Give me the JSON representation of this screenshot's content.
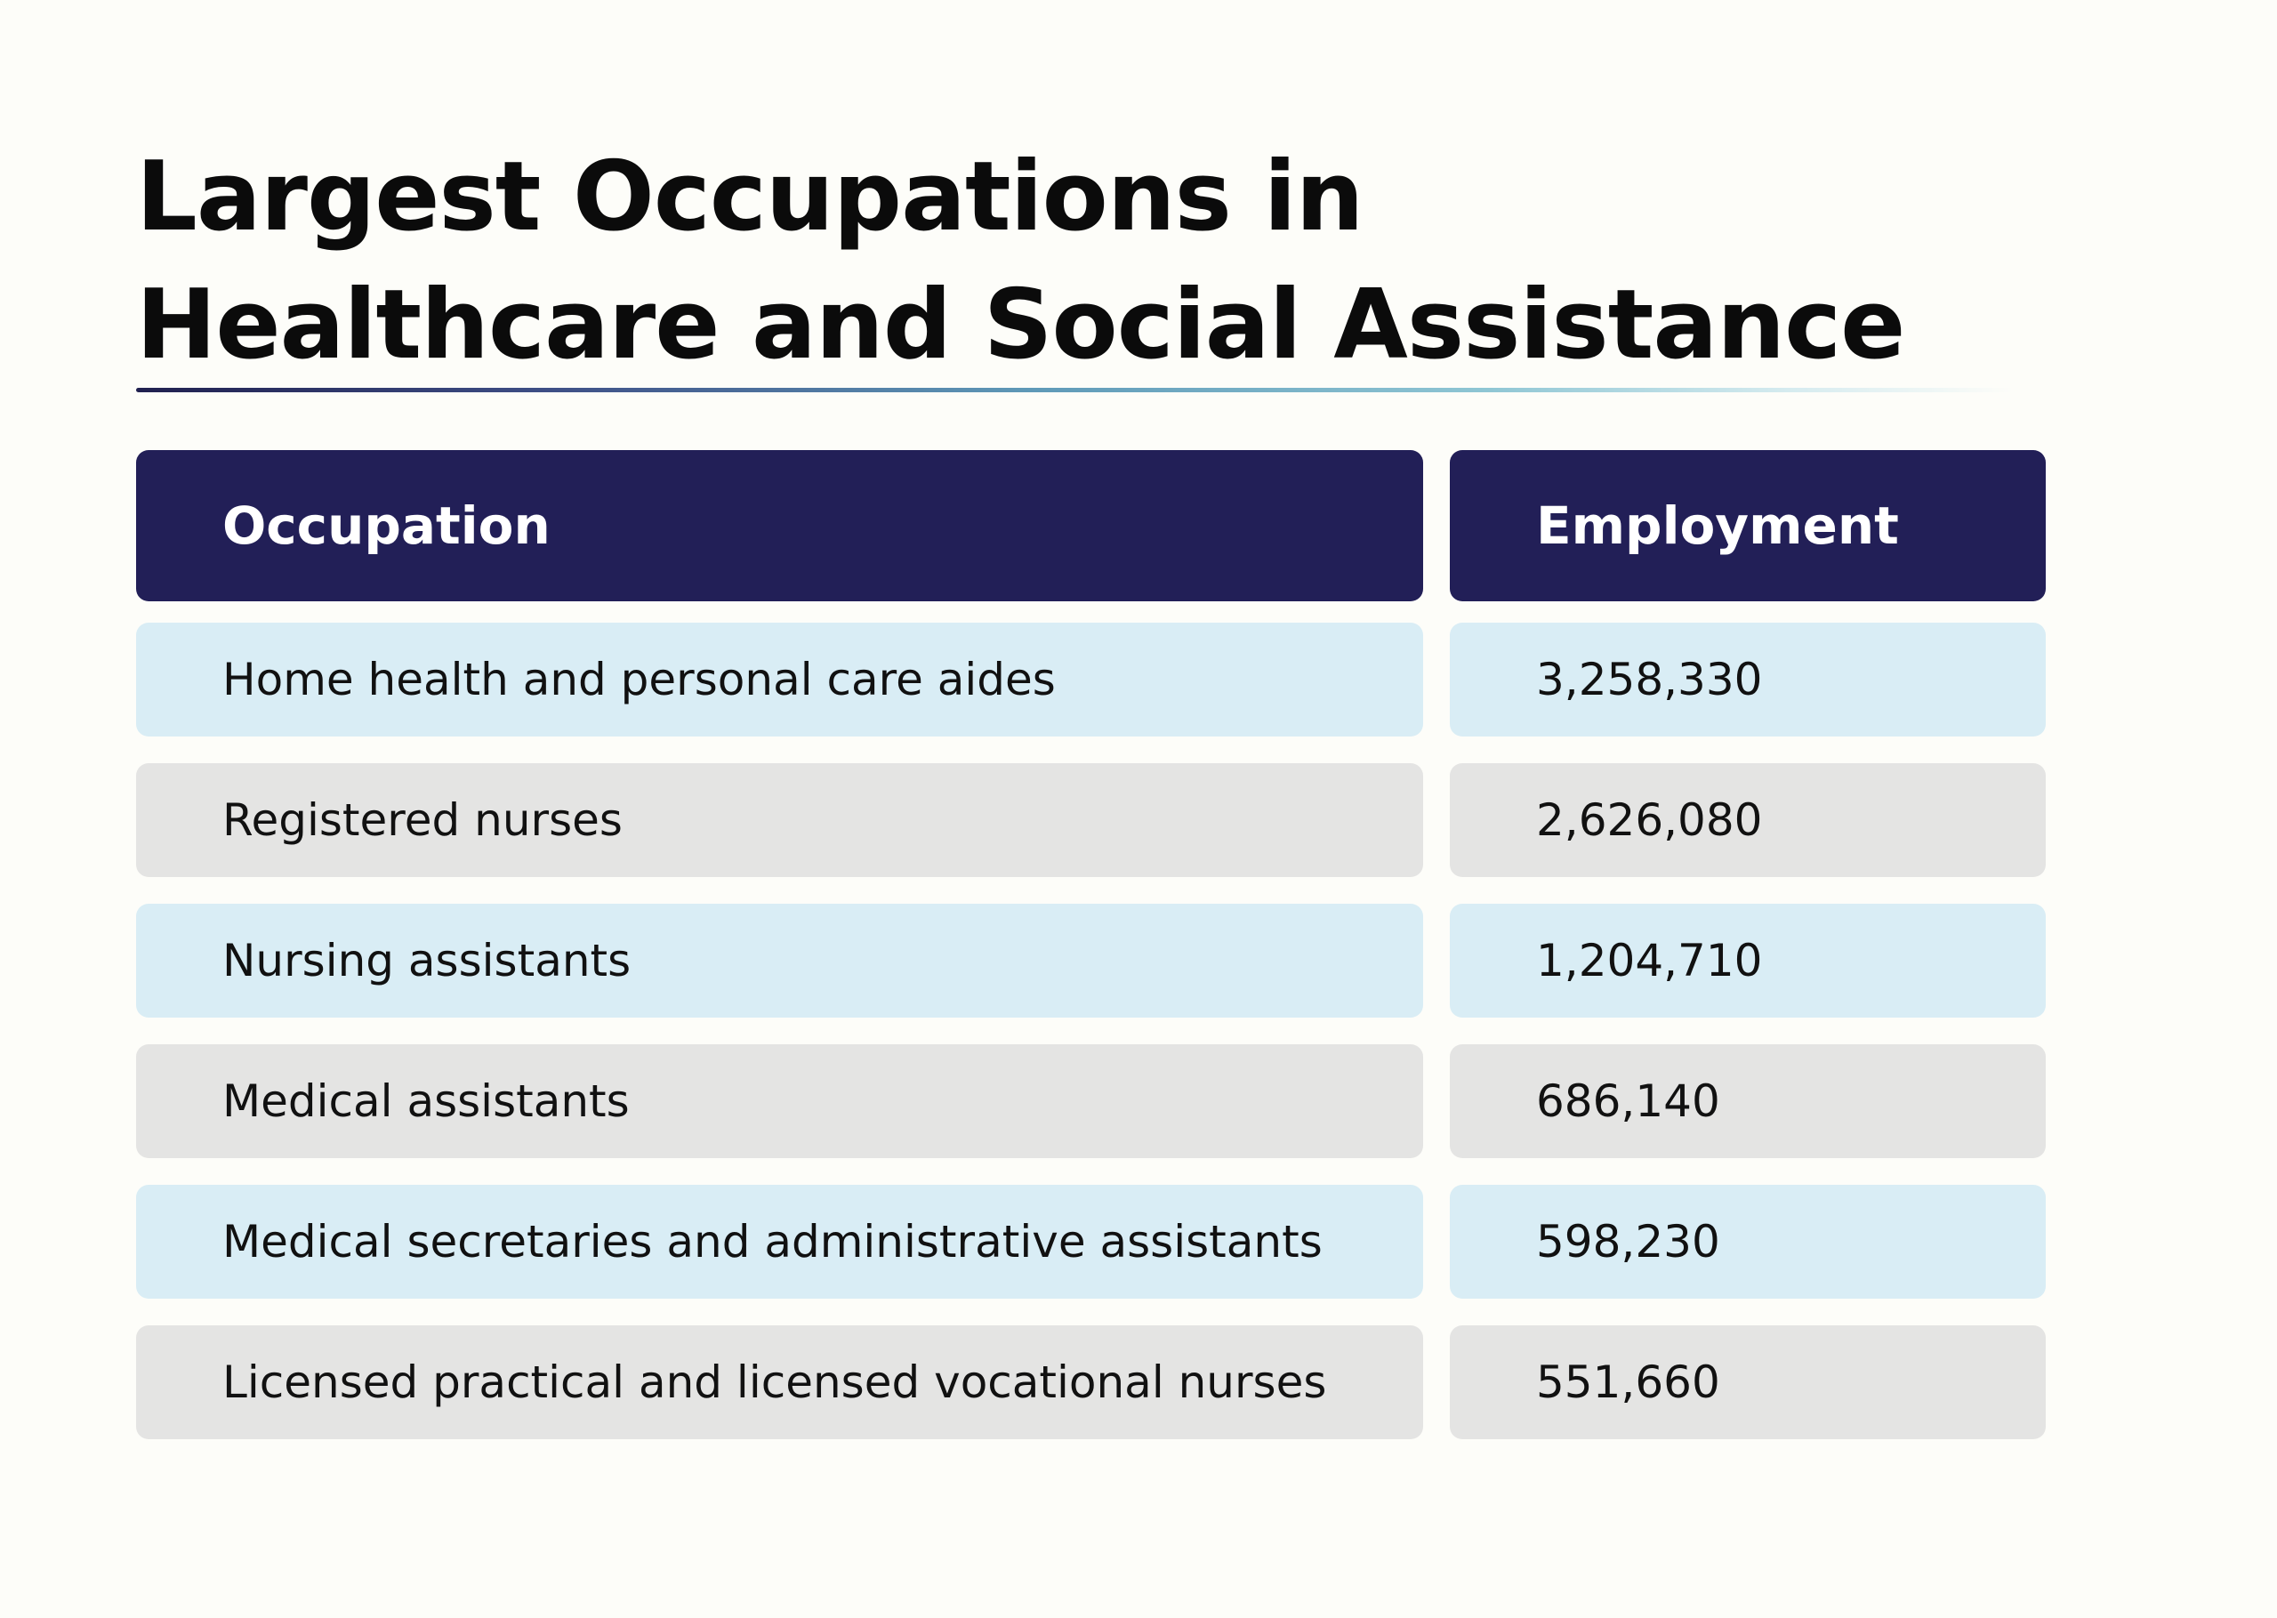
{
  "title": {
    "line1": "Largest Occupations in",
    "line2": "Healthcare and Social Assistance"
  },
  "colors": {
    "header_bg": "#221f57",
    "row_blue": "#d9edf5",
    "row_gray": "#e4e4e3",
    "page_bg": "#fdfdf9"
  },
  "chart_data": {
    "type": "table",
    "title": "Largest Occupations in Healthcare and Social Assistance",
    "columns": [
      "Occupation",
      "Employment"
    ],
    "rows": [
      {
        "occupation": "Home health and personal care aides",
        "employment": "3,258,330"
      },
      {
        "occupation": "Registered nurses",
        "employment": "2,626,080"
      },
      {
        "occupation": "Nursing assistants",
        "employment": "1,204,710"
      },
      {
        "occupation": "Medical assistants",
        "employment": "686,140"
      },
      {
        "occupation": "Medical secretaries and administrative assistants",
        "employment": "598,230"
      },
      {
        "occupation": "Licensed practical and licensed vocational nurses",
        "employment": "551,660"
      }
    ]
  }
}
